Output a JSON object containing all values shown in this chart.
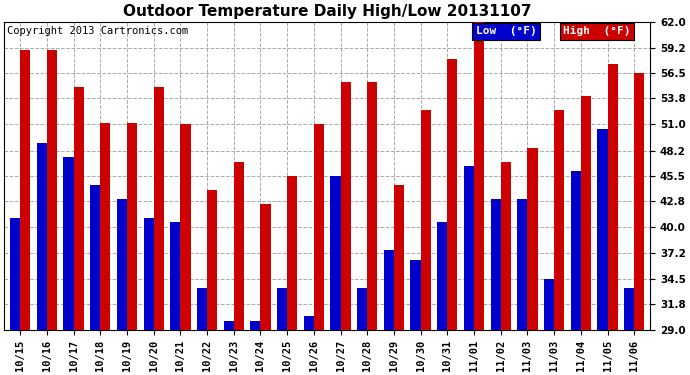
{
  "title": "Outdoor Temperature Daily High/Low 20131107",
  "copyright": "Copyright 2013 Cartronics.com",
  "legend_low": "Low  (°F)",
  "legend_high": "High  (°F)",
  "background_color": "#ffffff",
  "plot_bg_color": "#ffffff",
  "bar_width": 0.38,
  "ymin": 29.0,
  "ymax": 62.0,
  "yticks": [
    29.0,
    31.8,
    34.5,
    37.2,
    40.0,
    42.8,
    45.5,
    48.2,
    51.0,
    53.8,
    56.5,
    59.2,
    62.0
  ],
  "dates": [
    "10/15",
    "10/16",
    "10/17",
    "10/18",
    "10/19",
    "10/20",
    "10/21",
    "10/22",
    "10/23",
    "10/24",
    "10/25",
    "10/26",
    "10/27",
    "10/28",
    "10/29",
    "10/30",
    "10/31",
    "11/01",
    "11/02",
    "11/03",
    "11/03",
    "11/04",
    "11/05",
    "11/06"
  ],
  "high": [
    59.0,
    59.0,
    55.0,
    51.2,
    51.2,
    55.0,
    51.0,
    44.0,
    47.0,
    42.5,
    45.5,
    51.0,
    55.5,
    55.5,
    44.5,
    52.5,
    58.0,
    62.0,
    47.0,
    48.5,
    52.5,
    54.0,
    57.5,
    56.5
  ],
  "low": [
    41.0,
    49.0,
    47.5,
    44.5,
    43.0,
    41.0,
    40.5,
    33.5,
    30.0,
    30.0,
    33.5,
    30.5,
    45.5,
    33.5,
    37.5,
    36.5,
    40.5,
    46.5,
    43.0,
    43.0,
    34.5,
    46.0,
    50.5,
    33.5
  ],
  "low_color": "#0000cc",
  "high_color": "#cc0000",
  "grid_color": "#aaaaaa",
  "title_fontsize": 11,
  "tick_fontsize": 7.5,
  "copyright_fontsize": 7.5
}
